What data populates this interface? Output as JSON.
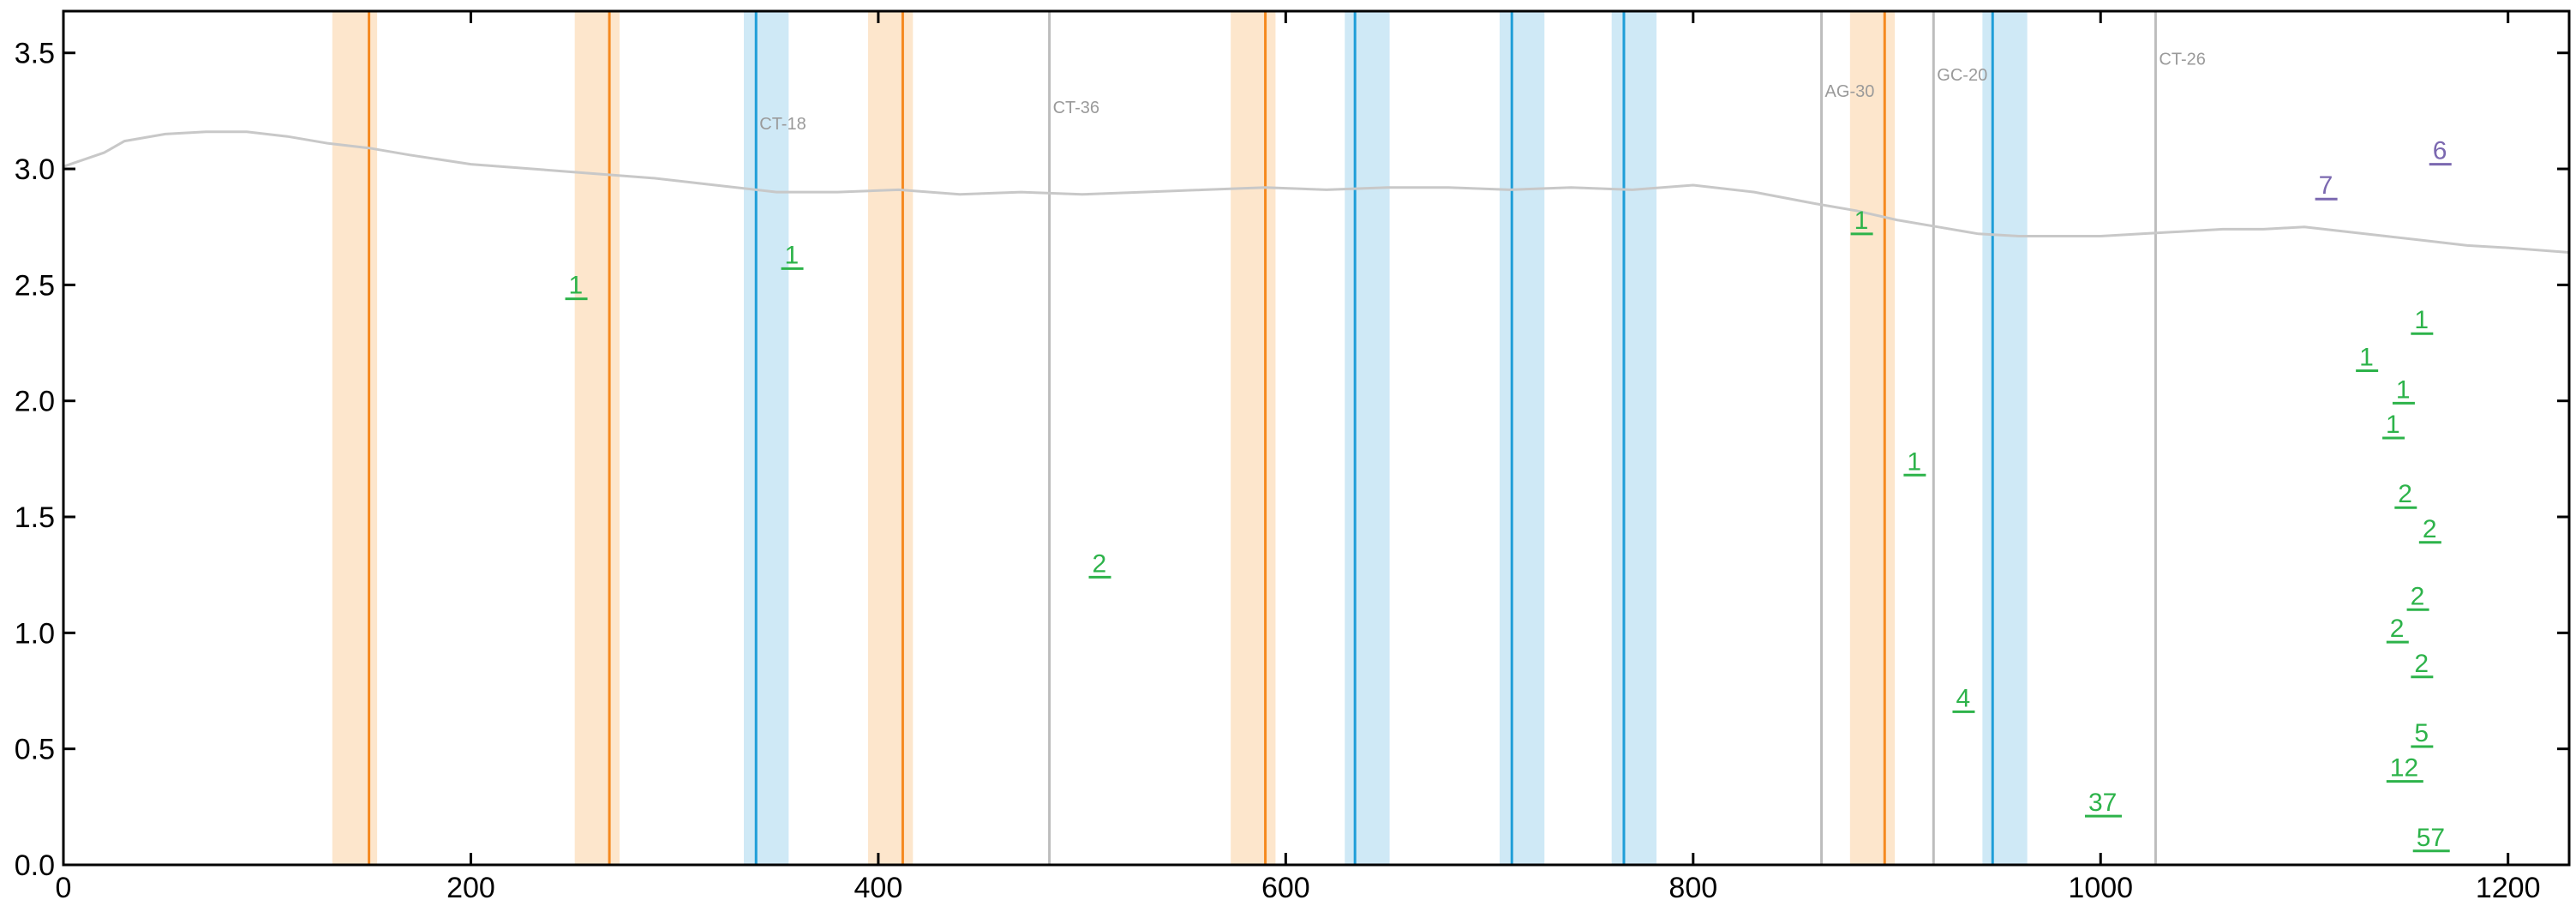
{
  "chart_data": {
    "type": "line",
    "title": "",
    "xlabel": "",
    "ylabel": "",
    "xlim": [
      0,
      1230
    ],
    "ylim": [
      0,
      3.68
    ],
    "x_ticks": [
      "0",
      "200",
      "400",
      "600",
      "800",
      "1000",
      "1200"
    ],
    "x_tick_values": [
      0,
      200,
      400,
      600,
      800,
      1000,
      1200
    ],
    "y_ticks": [
      "0.0",
      "0.5",
      "1.0",
      "1.5",
      "2.0",
      "2.5",
      "3.0",
      "3.5"
    ],
    "y_tick_values": [
      0,
      0.5,
      1.0,
      1.5,
      2.0,
      2.5,
      3.0,
      3.5
    ],
    "grid": false,
    "colors": {
      "trace": "#c8c8c8",
      "orange_line": "#f5891f",
      "orange_band": "#fde6cc",
      "blue_line": "#1f9ed8",
      "blue_band": "#cfe9f6",
      "gray_line": "#bdbdbd",
      "peak_green": "#2db34a",
      "peak_purple": "#7b68b0",
      "axis": "#000000"
    },
    "trace": {
      "x": [
        0,
        10,
        20,
        30,
        50,
        70,
        90,
        110,
        130,
        150,
        170,
        200,
        230,
        260,
        290,
        320,
        350,
        380,
        410,
        440,
        470,
        500,
        530,
        560,
        590,
        620,
        650,
        680,
        710,
        740,
        770,
        800,
        830,
        860,
        880,
        900,
        920,
        940,
        960,
        980,
        1000,
        1020,
        1040,
        1060,
        1080,
        1100,
        1120,
        1140,
        1160,
        1180,
        1200,
        1230
      ],
      "y": [
        3.01,
        3.04,
        3.07,
        3.12,
        3.15,
        3.16,
        3.16,
        3.14,
        3.11,
        3.09,
        3.06,
        3.02,
        3.0,
        2.98,
        2.96,
        2.93,
        2.9,
        2.9,
        2.91,
        2.89,
        2.9,
        2.89,
        2.9,
        2.91,
        2.92,
        2.91,
        2.92,
        2.92,
        2.91,
        2.92,
        2.91,
        2.93,
        2.9,
        2.85,
        2.82,
        2.78,
        2.75,
        2.72,
        2.71,
        2.71,
        2.71,
        2.72,
        2.73,
        2.74,
        2.74,
        2.75,
        2.73,
        2.71,
        2.69,
        2.67,
        2.66,
        2.64
      ]
    },
    "orange_regions": [
      {
        "x0": 132,
        "x1": 154,
        "line": 150
      },
      {
        "x0": 251,
        "x1": 273,
        "line": 268
      },
      {
        "x0": 395,
        "x1": 417,
        "line": 412
      },
      {
        "x0": 573,
        "x1": 595,
        "line": 590
      },
      {
        "x0": 877,
        "x1": 899,
        "line": 894
      }
    ],
    "blue_regions": [
      {
        "x0": 334,
        "x1": 356,
        "line": 340
      },
      {
        "x0": 629,
        "x1": 651,
        "line": 634
      },
      {
        "x0": 705,
        "x1": 727,
        "line": 711
      },
      {
        "x0": 760,
        "x1": 782,
        "line": 766
      },
      {
        "x0": 942,
        "x1": 964,
        "line": 947
      }
    ],
    "gray_lines": [
      {
        "x": 484,
        "label": "CT-36"
      },
      {
        "x": 863,
        "label": "AG-30"
      },
      {
        "x": 918,
        "label": "GC-20"
      },
      {
        "x": 1027,
        "label": "CT-26"
      }
    ],
    "region_labels": [
      {
        "x": 340,
        "y": 3.17,
        "label": "CT-18"
      },
      {
        "x": 484,
        "y": 3.24,
        "label": "CT-36"
      },
      {
        "x": 863,
        "y": 3.31,
        "label": "AG-30"
      },
      {
        "x": 918,
        "y": 3.38,
        "label": "GC-20"
      },
      {
        "x": 1027,
        "y": 3.45,
        "label": "CT-26"
      }
    ],
    "peaks": [
      {
        "x": 248,
        "y": 2.44,
        "label": "1",
        "color": "green"
      },
      {
        "x": 354,
        "y": 2.57,
        "label": "1",
        "color": "green"
      },
      {
        "x": 505,
        "y": 1.24,
        "label": "2",
        "color": "green"
      },
      {
        "x": 879,
        "y": 2.72,
        "label": "1",
        "color": "green"
      },
      {
        "x": 905,
        "y": 1.68,
        "label": "1",
        "color": "green"
      },
      {
        "x": 929,
        "y": 0.66,
        "label": "4",
        "color": "green"
      },
      {
        "x": 994,
        "y": 0.21,
        "label": "37",
        "color": "green"
      },
      {
        "x": 1107,
        "y": 2.87,
        "label": "7",
        "color": "purple"
      },
      {
        "x": 1163,
        "y": 3.02,
        "label": "6",
        "color": "purple"
      },
      {
        "x": 1127,
        "y": 2.13,
        "label": "1",
        "color": "green"
      },
      {
        "x": 1154,
        "y": 2.29,
        "label": "1",
        "color": "green"
      },
      {
        "x": 1145,
        "y": 1.99,
        "label": "1",
        "color": "green"
      },
      {
        "x": 1140,
        "y": 1.84,
        "label": "1",
        "color": "green"
      },
      {
        "x": 1146,
        "y": 1.54,
        "label": "2",
        "color": "green"
      },
      {
        "x": 1158,
        "y": 1.39,
        "label": "2",
        "color": "green"
      },
      {
        "x": 1152,
        "y": 1.1,
        "label": "2",
        "color": "green"
      },
      {
        "x": 1142,
        "y": 0.96,
        "label": "2",
        "color": "green"
      },
      {
        "x": 1154,
        "y": 0.81,
        "label": "2",
        "color": "green"
      },
      {
        "x": 1154,
        "y": 0.51,
        "label": "5",
        "color": "green"
      },
      {
        "x": 1142,
        "y": 0.36,
        "label": "12",
        "color": "green"
      },
      {
        "x": 1155,
        "y": 0.06,
        "label": "57",
        "color": "green"
      }
    ]
  }
}
